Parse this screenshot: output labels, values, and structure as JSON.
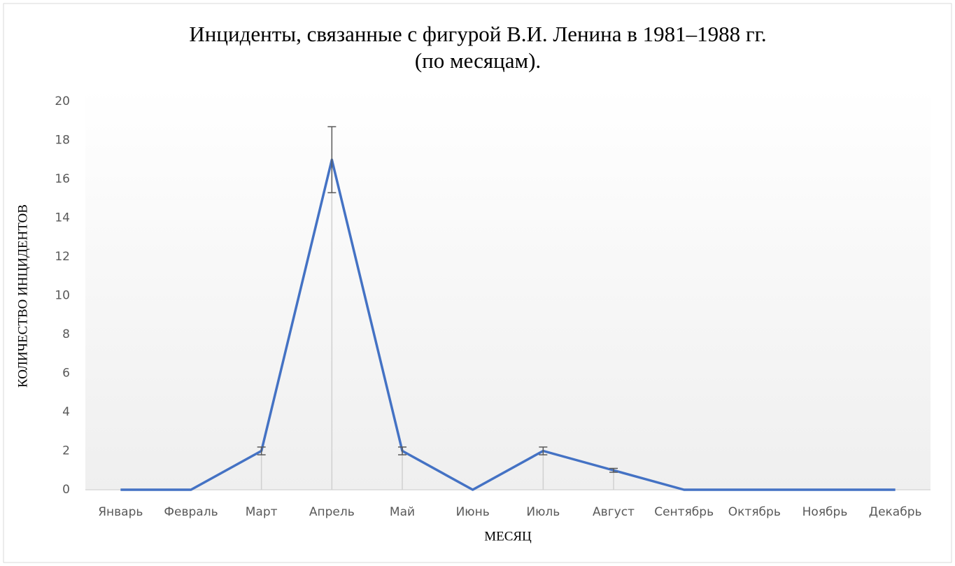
{
  "chart_data": {
    "type": "line",
    "title": [
      "Инциденты, связанные с фигурой В.И. Ленина в 1981–1988 гг.",
      "(по месяцам)."
    ],
    "x_label": "МЕСЯЦ",
    "y_label": "КОЛИЧЕСТВО ИНЦИДЕНТОВ",
    "categories": [
      "Январь",
      "Февраль",
      "Март",
      "Апрель",
      "Май",
      "Июнь",
      "Июль",
      "Август",
      "Сентябрь",
      "Октябрь",
      "Ноябрь",
      "Декабрь"
    ],
    "series": [
      {
        "color": "#4472c4",
        "values": [
          0,
          0,
          2,
          17,
          2,
          0,
          2,
          1,
          0,
          0,
          0,
          0
        ],
        "errors": [
          0,
          0,
          0.2,
          1.7,
          0.2,
          0,
          0.2,
          0.1,
          0,
          0,
          0,
          0
        ]
      }
    ],
    "ylim": [
      0,
      20
    ],
    "yticks": [
      0,
      2,
      4,
      6,
      8,
      10,
      12,
      14,
      16,
      18,
      20
    ],
    "drop_lines": true,
    "grid": false
  }
}
